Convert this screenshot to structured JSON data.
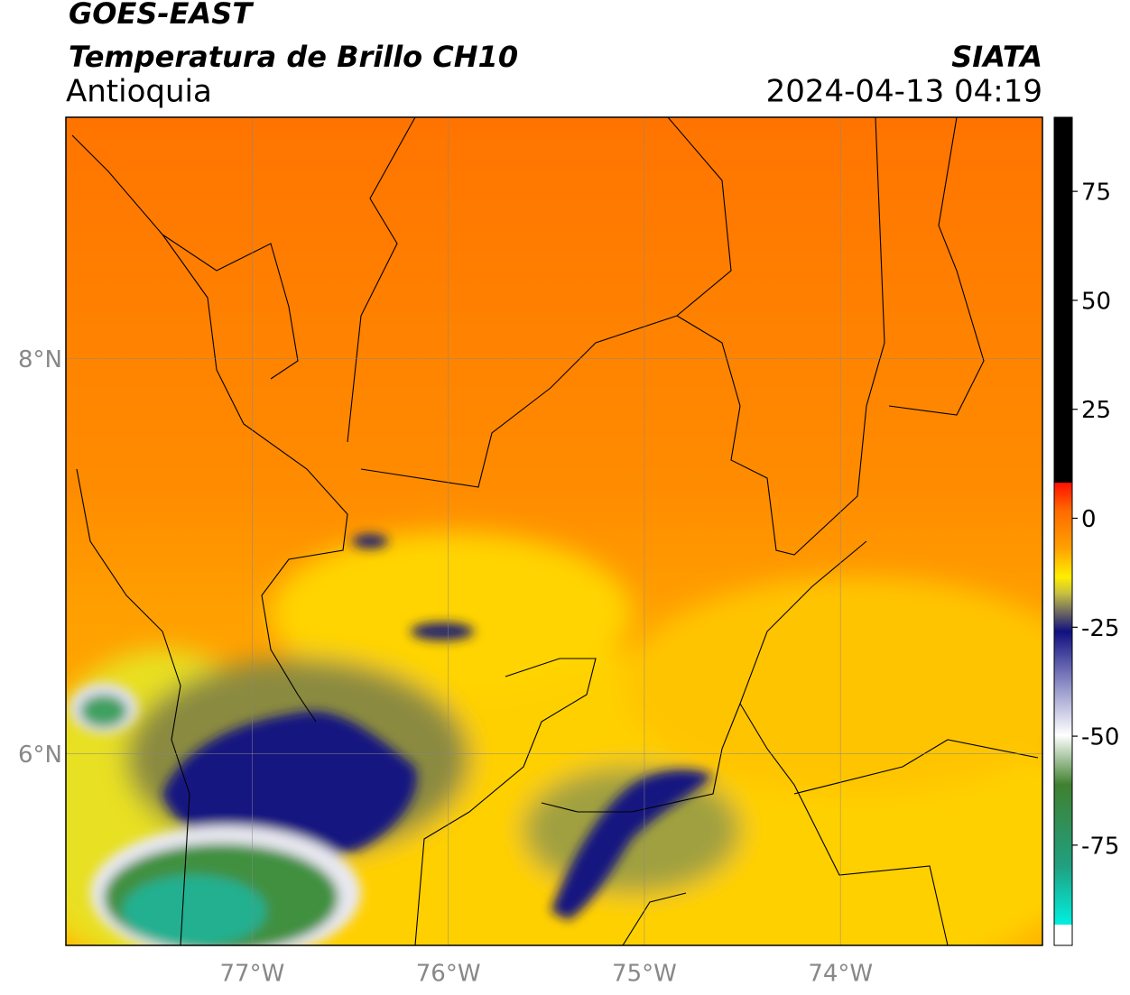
{
  "header": {
    "title": "GOES-EAST",
    "subtitle": "Temperatura de Brillo CH10",
    "region": "Antioquia",
    "source": "SIATA",
    "datetime": "2024-04-13 04:19"
  },
  "map": {
    "xlim": [
      -77.95,
      -72.97
    ],
    "ylim": [
      5.03,
      9.22
    ],
    "xticks": [
      {
        "value": -77,
        "label": "77°W"
      },
      {
        "value": -76,
        "label": "76°W"
      },
      {
        "value": -75,
        "label": "75°W"
      },
      {
        "value": -74,
        "label": "74°W"
      }
    ],
    "yticks": [
      {
        "value": 8,
        "label": "8°N"
      },
      {
        "value": 6,
        "label": "6°N"
      }
    ]
  },
  "colorbar": {
    "lim": [
      -98,
      92
    ],
    "ticks": [
      75,
      50,
      25,
      0,
      -25,
      -50,
      -75
    ]
  }
}
